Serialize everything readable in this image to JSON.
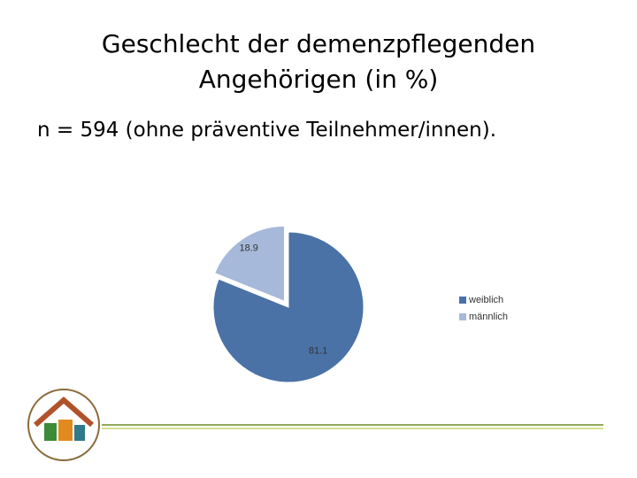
{
  "chart_data": {
    "type": "pie",
    "title": "Geschlecht der demenzpflegenden Angehörigen (in %)",
    "subtitle": "n = 594 (ohne präventive Teilnehmer/innen).",
    "categories": [
      "weiblich",
      "männlich"
    ],
    "values": [
      81.1,
      18.9
    ],
    "colors": [
      "#4a72a6",
      "#a6b9da"
    ],
    "legend": "right"
  }
}
